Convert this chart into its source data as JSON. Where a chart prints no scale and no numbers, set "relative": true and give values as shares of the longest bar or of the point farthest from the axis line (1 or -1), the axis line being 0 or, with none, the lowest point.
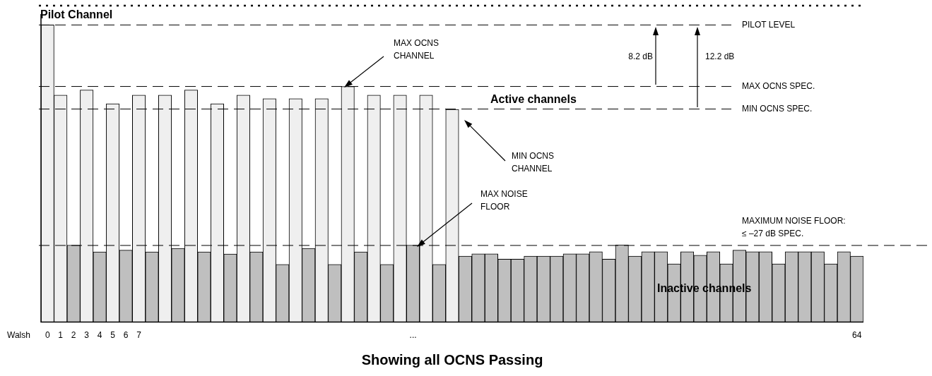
{
  "chart_data": {
    "type": "bar",
    "title": "Showing all OCNS Passing",
    "xlabel": "Walsh",
    "relative": true,
    "legend": false,
    "grid": false,
    "categories": [
      "0",
      "1",
      "2",
      "3",
      "4",
      "5",
      "6",
      "7",
      null,
      null,
      null,
      null,
      null,
      null,
      null,
      null,
      null,
      null,
      null,
      null,
      null,
      null,
      null,
      null,
      null,
      null,
      null,
      null,
      "...",
      null,
      null,
      null,
      null,
      null,
      null,
      null,
      null,
      null,
      null,
      null,
      null,
      null,
      null,
      null,
      null,
      null,
      null,
      null,
      null,
      null,
      null,
      null,
      null,
      null,
      null,
      null,
      null,
      null,
      null,
      null,
      null,
      null,
      "64"
    ],
    "values": [
      1,
      0.764,
      0.259,
      0.781,
      0.236,
      0.735,
      0.242,
      0.764,
      0.236,
      0.764,
      0.248,
      0.781,
      0.236,
      0.735,
      0.229,
      0.764,
      0.236,
      0.752,
      0.194,
      0.752,
      0.248,
      0.752,
      0.194,
      0.793,
      0.236,
      0.764,
      0.194,
      0.764,
      0.259,
      0.764,
      0.194,
      0.716,
      0.222,
      0.23,
      0.23,
      0.212,
      0.212,
      0.222,
      0.222,
      0.222,
      0.23,
      0.23,
      0.237,
      0.212,
      0.26,
      0.222,
      0.237,
      0.237,
      0.196,
      0.237,
      0.225,
      0.237,
      0.196,
      0.242,
      0.237,
      0.237,
      0.196,
      0.237,
      0.237,
      0.237,
      0.196,
      0.237,
      0.222
    ],
    "colors": [
      "#efefef",
      "#efefef",
      "#bfbfbf",
      "#efefef",
      "#bfbfbf",
      "#efefef",
      "#bfbfbf",
      "#efefef",
      "#bfbfbf",
      "#efefef",
      "#bfbfbf",
      "#efefef",
      "#bfbfbf",
      "#efefef",
      "#bfbfbf",
      "#efefef",
      "#bfbfbf",
      "#efefef",
      "#bfbfbf",
      "#efefef",
      "#bfbfbf",
      "#efefef",
      "#bfbfbf",
      "#efefef",
      "#bfbfbf",
      "#efefef",
      "#bfbfbf",
      "#efefef",
      "#bfbfbf",
      "#efefef",
      "#bfbfbf",
      "#efefef",
      "#bfbfbf",
      "#bfbfbf",
      "#bfbfbf",
      "#bfbfbf",
      "#bfbfbf",
      "#bfbfbf",
      "#bfbfbf",
      "#bfbfbf",
      "#bfbfbf",
      "#bfbfbf",
      "#bfbfbf",
      "#bfbfbf",
      "#bfbfbf",
      "#bfbfbf",
      "#bfbfbf",
      "#bfbfbf",
      "#bfbfbf",
      "#bfbfbf",
      "#bfbfbf",
      "#bfbfbf",
      "#bfbfbf",
      "#bfbfbf",
      "#bfbfbf",
      "#bfbfbf",
      "#bfbfbf",
      "#bfbfbf",
      "#bfbfbf",
      "#bfbfbf",
      "#bfbfbf",
      "#bfbfbf",
      "#bfbfbf"
    ],
    "ref_lines": [
      {
        "axis": "y",
        "value": 1.065,
        "line_style": "dotted"
      },
      {
        "axis": "y",
        "value": 1,
        "label": "PILOT LEVEL",
        "line_style": "dashed"
      },
      {
        "axis": "y",
        "value": 0.793,
        "label": "MAX OCNS SPEC.",
        "line_style": "dashed"
      },
      {
        "axis": "y",
        "value": 0.717,
        "label": "MIN OCNS SPEC.",
        "line_style": "dashed"
      },
      {
        "axis": "y",
        "value": 0.258,
        "label": "MAXIMUM NOISE FLOOR: ≤ –27 dB SPEC.",
        "line_style": "dashed"
      }
    ],
    "annotations": [
      "Pilot Channel",
      "MAX OCNS CHANNEL",
      "Active channels",
      "MIN OCNS CHANNEL",
      "MAX NOISE FLOOR",
      "Inactive channels",
      "8.2 dB",
      "12.2 dB"
    ]
  }
}
